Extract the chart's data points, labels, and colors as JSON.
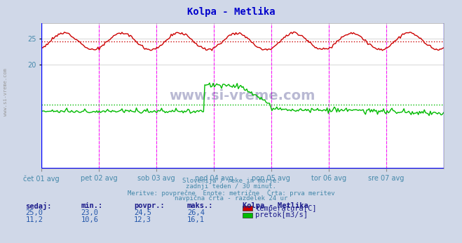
{
  "title": "Kolpa - Metlika",
  "title_color": "#0000cc",
  "bg_color": "#d0d8e8",
  "plot_bg_color": "#ffffff",
  "grid_color": "#c8c8c8",
  "xlabel_color": "#4488aa",
  "text_color": "#4488aa",
  "watermark": "www.si-vreme.com",
  "temp_color": "#cc0000",
  "flow_color": "#00bb00",
  "vertical_line_color": "#ff00ff",
  "temp_avg": 24.5,
  "flow_avg": 12.3,
  "temp_min": 23.0,
  "temp_max": 26.4,
  "temp_current": 25.0,
  "flow_min": 10.6,
  "flow_max": 16.1,
  "flow_current": 11.2,
  "ylim": [
    0,
    28
  ],
  "yticks": [
    20,
    25
  ],
  "n_points": 336,
  "day_labels": [
    "čet 01 avg",
    "pet 02 avg",
    "sob 03 avg",
    "ned 04 avg",
    "pon 05 avg",
    "tor 06 avg",
    "sre 07 avg"
  ],
  "subtitle1": "Slovenija / reke in morje.",
  "subtitle2": "zadnji teden / 30 minut.",
  "subtitle3": "Meritve: povprečne  Enote: metrične  Črta: prva meritev",
  "subtitle4": "navpična črta - razdelek 24 ur",
  "table_headers": [
    "sedaj:",
    "min.:",
    "povpr.:",
    "maks.:",
    "Kolpa - Metlika"
  ],
  "table_row1": [
    "25,0",
    "23,0",
    "24,5",
    "26,4"
  ],
  "table_row2": [
    "11,2",
    "10,6",
    "12,3",
    "16,1"
  ],
  "legend_label1": "temperatura[C]",
  "legend_label2": "pretok[m3/s]",
  "bold_color": "#1a1a8a",
  "table_color": "#2255aa"
}
